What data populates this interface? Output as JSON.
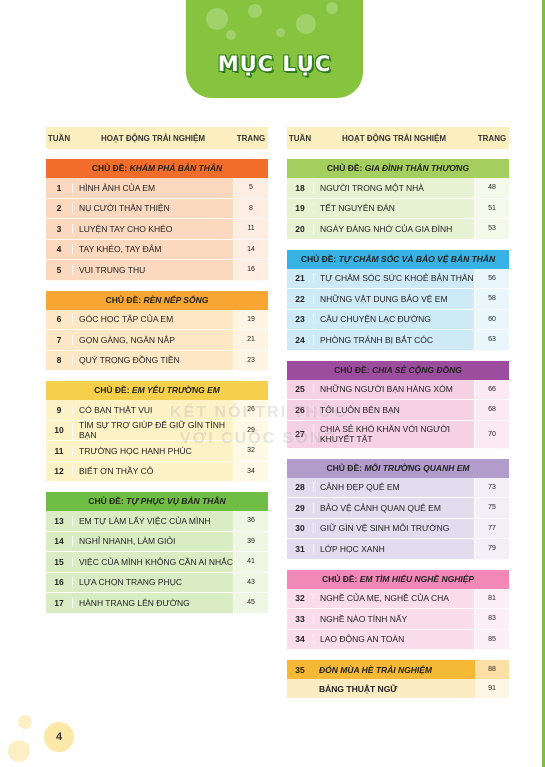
{
  "banner": {
    "title": "MỤC LỤC"
  },
  "headers": {
    "num": "TUẦN",
    "activity": "HOẠT ĐỘNG TRẢI NGHIỆM",
    "page": "TRANG"
  },
  "colors": {
    "orange": "#f26c2a",
    "orange_light": "#fbd8be",
    "amber": "#f7a533",
    "amber_light": "#fde7c4",
    "yellow": "#f6cf4d",
    "yellow_light": "#fdf1c6",
    "green": "#6fbd44",
    "green_light": "#d9ecc4",
    "lime": "#a4cf5e",
    "lime_light": "#e7f2d2",
    "blue": "#36b3e4",
    "blue_light": "#cfeaf7",
    "purple": "#9c4d9e",
    "purple_light": "#f6d1e3",
    "lilac": "#b19ccc",
    "lilac_light": "#e3dbee",
    "pink": "#f288b8",
    "pink_light": "#fbdcea",
    "gold": "#f5b935",
    "gold_light": "#fcecc3"
  },
  "left_sections": [
    {
      "label": "CHỦ ĐỀ:",
      "title": "KHÁM PHÁ BẢN THÂN",
      "head": "orange",
      "body": "orange_light",
      "rows": [
        {
          "num": "1",
          "name": "HÌNH ẢNH CỦA EM",
          "page": "5"
        },
        {
          "num": "2",
          "name": "NỤ CƯỜI THÂN THIỆN",
          "page": "8"
        },
        {
          "num": "3",
          "name": "LUYỆN TAY CHO KHÉO",
          "page": "11"
        },
        {
          "num": "4",
          "name": "TAY KHÉO, TAY ĐẢM",
          "page": "14"
        },
        {
          "num": "5",
          "name": "VUI TRUNG THU",
          "page": "16"
        }
      ]
    },
    {
      "label": "CHỦ ĐỀ:",
      "title": "RÈN NẾP SỐNG",
      "head": "amber",
      "body": "amber_light",
      "rows": [
        {
          "num": "6",
          "name": "GÓC HỌC TẬP CỦA EM",
          "page": "19"
        },
        {
          "num": "7",
          "name": "GỌN GÀNG, NGĂN NẮP",
          "page": "21"
        },
        {
          "num": "8",
          "name": "QUÝ TRỌNG ĐỒNG TIỀN",
          "page": "23"
        }
      ]
    },
    {
      "label": "CHỦ ĐỀ:",
      "title": "EM YÊU TRƯỜNG EM",
      "head": "yellow",
      "body": "yellow_light",
      "rows": [
        {
          "num": "9",
          "name": "CÓ BẠN THẬT VUI",
          "page": "26"
        },
        {
          "num": "10",
          "name": "TÌM SỰ TRỢ GIÚP ĐỂ GIỮ GÌN TÌNH BẠN",
          "page": "29"
        },
        {
          "num": "11",
          "name": "TRƯỜNG HỌC HẠNH PHÚC",
          "page": "32"
        },
        {
          "num": "12",
          "name": "BIẾT ƠN THẦY CÔ",
          "page": "34"
        }
      ]
    },
    {
      "label": "CHỦ ĐỀ:",
      "title": "TỰ PHỤC VỤ BẢN THÂN",
      "head": "green",
      "body": "green_light",
      "rows": [
        {
          "num": "13",
          "name": "EM TỰ LÀM LẤY VIỆC CỦA MÌNH",
          "page": "36"
        },
        {
          "num": "14",
          "name": "NGHỈ NHANH, LÀM GIỎI",
          "page": "39"
        },
        {
          "num": "15",
          "name": "VIỆC CỦA MÌNH KHÔNG CẦN AI NHẮC",
          "page": "41"
        },
        {
          "num": "16",
          "name": "LỰA CHỌN TRANG PHỤC",
          "page": "43"
        },
        {
          "num": "17",
          "name": "HÀNH TRANG LÊN ĐƯỜNG",
          "page": "45"
        }
      ]
    }
  ],
  "right_sections": [
    {
      "label": "CHỦ ĐỀ:",
      "title": "GIA ĐÌNH THÂN THƯƠNG",
      "head": "lime",
      "body": "lime_light",
      "rows": [
        {
          "num": "18",
          "name": "NGƯỜI TRONG MỘT NHÀ",
          "page": "48"
        },
        {
          "num": "19",
          "name": "TẾT NGUYÊN ĐÁN",
          "page": "51"
        },
        {
          "num": "20",
          "name": "NGÀY ĐÁNG NHỚ CỦA GIA ĐÌNH",
          "page": "53"
        }
      ]
    },
    {
      "label": "CHỦ ĐỀ:",
      "title": "TỰ CHĂM SÓC VÀ BẢO VỆ BẢN THÂN",
      "head": "blue",
      "body": "blue_light",
      "rows": [
        {
          "num": "21",
          "name": "TỰ CHĂM SÓC SỨC KHOẺ BẢN THÂN",
          "page": "56"
        },
        {
          "num": "22",
          "name": "NHỮNG VẬT DỤNG BẢO VỆ EM",
          "page": "58"
        },
        {
          "num": "23",
          "name": "CÂU CHUYỆN LẠC ĐƯỜNG",
          "page": "60"
        },
        {
          "num": "24",
          "name": "PHÒNG TRÁNH BỊ BẮT CÓC",
          "page": "63"
        }
      ]
    },
    {
      "label": "CHỦ ĐỀ:",
      "title": "CHIA SẺ CỘNG ĐỒNG",
      "head": "purple",
      "body": "purple_light",
      "rows": [
        {
          "num": "25",
          "name": "NHỮNG NGƯỜI BẠN HÀNG XÓM",
          "page": "66"
        },
        {
          "num": "26",
          "name": "TÔI LUÔN BÊN BẠN",
          "page": "68"
        },
        {
          "num": "27",
          "name": "CHIA SẺ KHÓ KHĂN VỚI NGƯỜI KHUYẾT TẬT",
          "page": "70",
          "tall": true
        }
      ]
    },
    {
      "label": "CHỦ ĐỀ:",
      "title": "MÔI TRƯỜNG QUANH EM",
      "head": "lilac",
      "body": "lilac_light",
      "rows": [
        {
          "num": "28",
          "name": "CẢNH ĐẸP QUÊ EM",
          "page": "73"
        },
        {
          "num": "29",
          "name": "BẢO VỆ CẢNH QUAN QUÊ EM",
          "page": "75"
        },
        {
          "num": "30",
          "name": "GIỮ GÌN VỆ SINH MÔI TRƯỜNG",
          "page": "77"
        },
        {
          "num": "31",
          "name": "LỚP HỌC XANH",
          "page": "79"
        }
      ]
    },
    {
      "label": "CHỦ ĐỀ:",
      "title": "EM TÌM HIỂU NGHỀ NGHIỆP",
      "head": "pink",
      "body": "pink_light",
      "rows": [
        {
          "num": "32",
          "name": "NGHỀ CỦA MẸ, NGHỀ CỦA CHA",
          "page": "81"
        },
        {
          "num": "33",
          "name": "NGHỀ NÀO TÍNH NẤY",
          "page": "83"
        },
        {
          "num": "34",
          "name": "LAO ĐỘNG AN TOÀN",
          "page": "85"
        }
      ]
    }
  ],
  "special": [
    {
      "num": "35",
      "name": "ĐÓN MÙA HÈ TRẢI NGHIỆM",
      "page": "88",
      "head": "gold",
      "body": "gold"
    },
    {
      "num": "",
      "name": "BẢNG THUẬT NGỮ",
      "page": "91",
      "head": "gold_light",
      "body": "gold_light"
    }
  ],
  "watermark": {
    "line1": "KẾT NỐI TRI THỨC",
    "line2": "VỚI CUỘC SỐNG"
  },
  "page_number": "4"
}
